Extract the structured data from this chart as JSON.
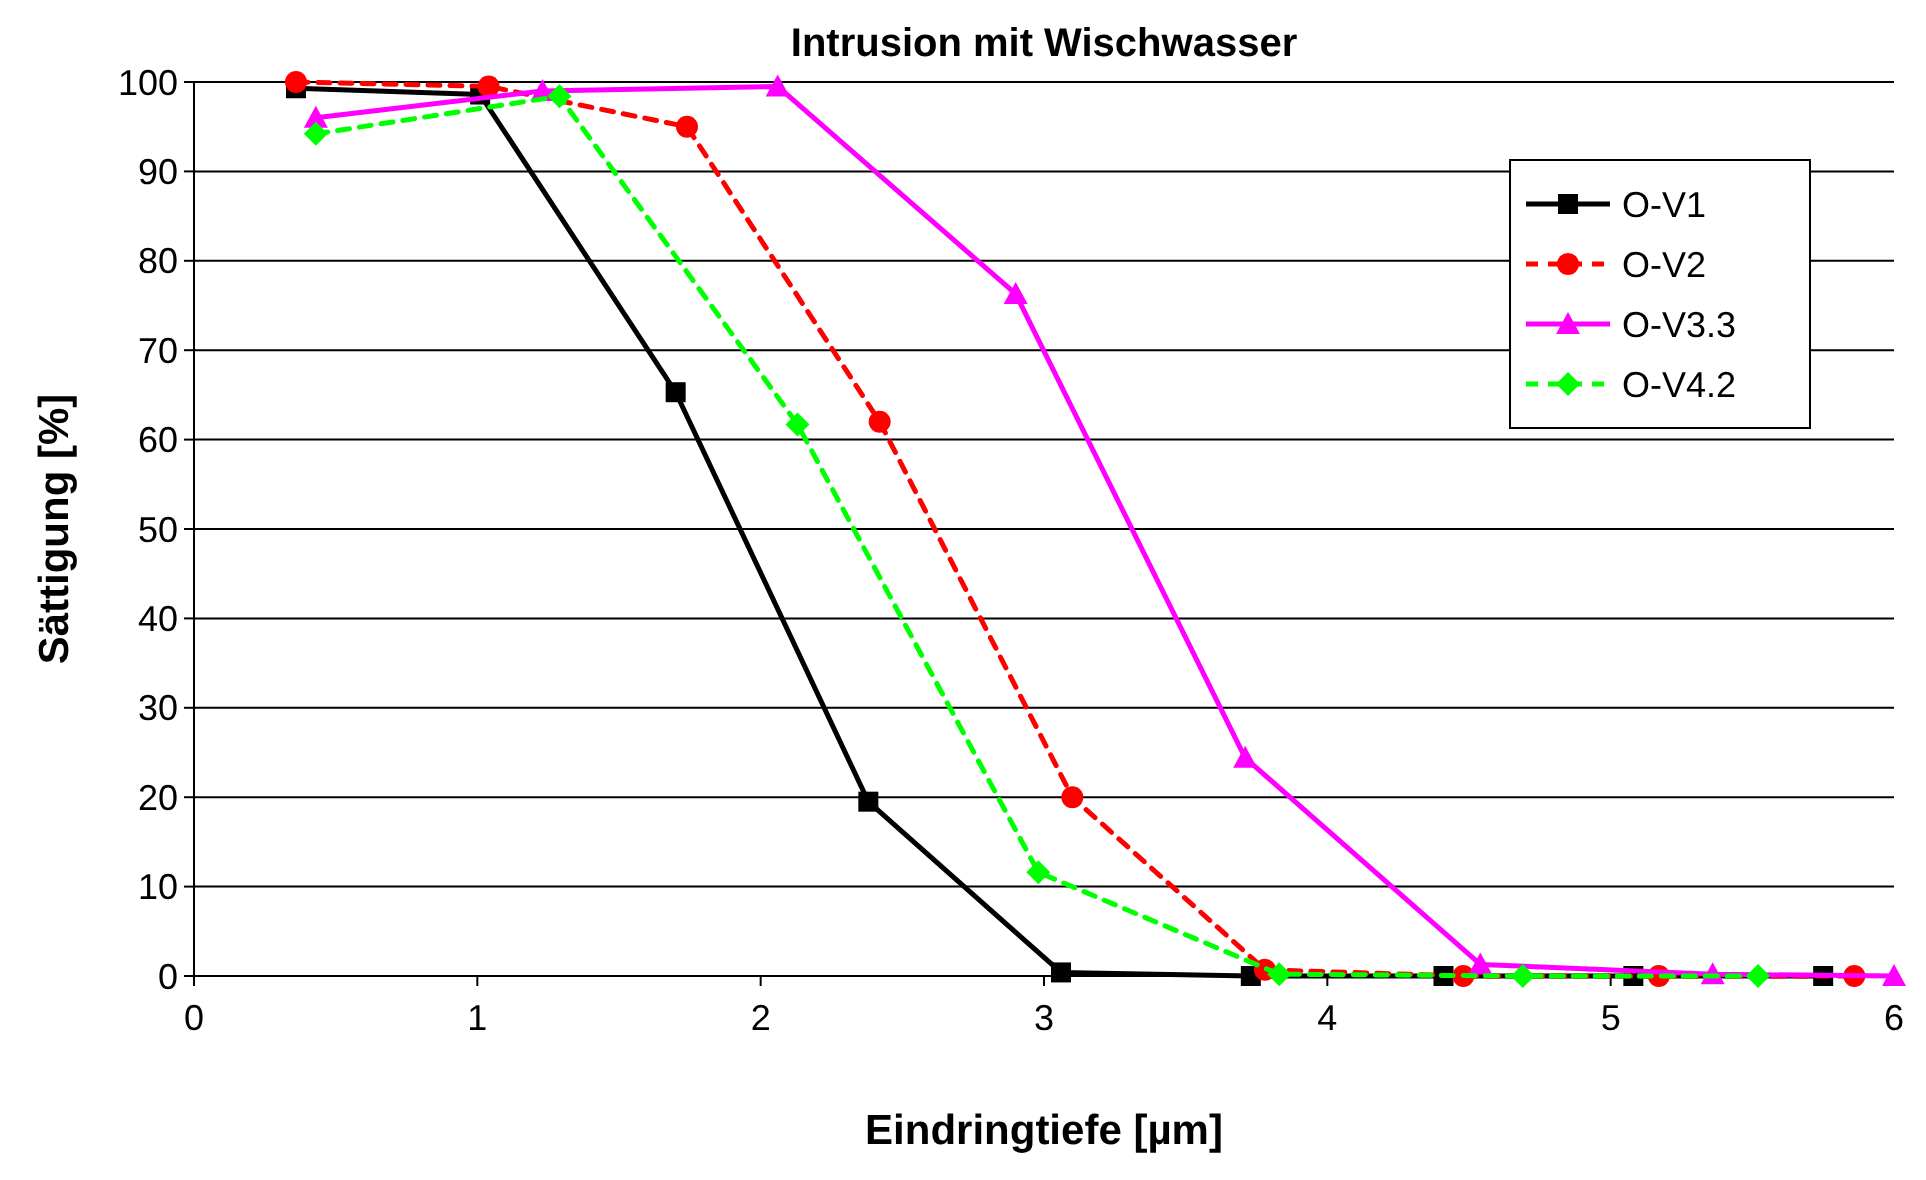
{
  "chart_data": {
    "type": "line",
    "title": "Intrusion mit Wischwasser",
    "xlabel": "Eindringtiefe [µm]",
    "ylabel": "Sättigung [%]",
    "xlim": [
      0,
      6
    ],
    "xticks": [
      0,
      1,
      2,
      3,
      4,
      5,
      6
    ],
    "ylim": [
      0,
      100
    ],
    "yticks": [
      0,
      10,
      20,
      30,
      40,
      50,
      60,
      70,
      80,
      90,
      100
    ],
    "grid": "y",
    "legend": "top right",
    "series": [
      {
        "name": "O-V1",
        "color": "#000000",
        "marker": "square",
        "line_style": "solid",
        "x": [
          0.36,
          1.01,
          1.7,
          2.38,
          3.06,
          3.73,
          4.41,
          5.08,
          5.75
        ],
        "values": [
          99.3,
          98.6,
          65.3,
          19.5,
          0.4,
          0,
          0,
          0,
          0
        ]
      },
      {
        "name": "O-V2",
        "color": "#ff0000",
        "marker": "circle",
        "line_style": "dashed",
        "x": [
          0.36,
          1.04,
          1.74,
          2.42,
          3.1,
          3.78,
          4.48,
          5.17,
          5.86
        ],
        "values": [
          100,
          99.5,
          95,
          62,
          20,
          0.7,
          0,
          0,
          0
        ]
      },
      {
        "name": "O-V3.3",
        "color": "#ff00ff",
        "marker": "triangle",
        "line_style": "solid",
        "x": [
          0.43,
          1.23,
          2.06,
          2.9,
          3.71,
          4.54,
          5.36,
          6
        ],
        "values": [
          96,
          99,
          99.5,
          76.3,
          24.4,
          1.3,
          0.2,
          0
        ]
      },
      {
        "name": "O-V4.2",
        "color": "#00ff00",
        "marker": "diamond",
        "line_style": "dashed",
        "x": [
          0.43,
          1.29,
          2.13,
          2.98,
          3.83,
          4.69,
          5.52
        ],
        "values": [
          94.2,
          98.4,
          61.7,
          11.6,
          0.2,
          0,
          0
        ]
      }
    ]
  }
}
